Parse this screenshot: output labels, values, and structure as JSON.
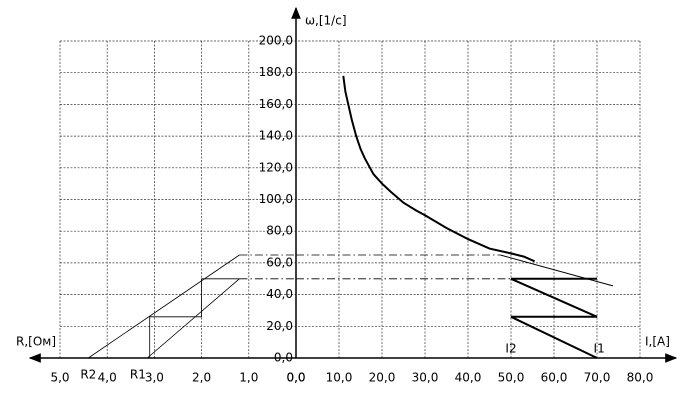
{
  "chart_data": {
    "type": "line",
    "ylabel": "ω,[1/с]",
    "xlabel": "I,[A]",
    "x2label": "R,[Ом]",
    "xlim": [
      0,
      80
    ],
    "xticks": [
      {
        "value": 0,
        "label": "0,0"
      },
      {
        "value": 10,
        "label": "10,0"
      },
      {
        "value": 20,
        "label": "20,0"
      },
      {
        "value": 30,
        "label": "30,0"
      },
      {
        "value": 40,
        "label": "40,0"
      },
      {
        "value": 50,
        "label": "50,0"
      },
      {
        "value": 60,
        "label": "60,0"
      },
      {
        "value": 70,
        "label": "70,0"
      },
      {
        "value": 80,
        "label": "80,0"
      }
    ],
    "x2lim": [
      5,
      0
    ],
    "x2ticks": [
      {
        "value": 5,
        "label": "5,0"
      },
      {
        "value": 4,
        "label": "4,0"
      },
      {
        "value": 3,
        "label": "3,0"
      },
      {
        "value": 2,
        "label": "2,0"
      },
      {
        "value": 1,
        "label": "1,0"
      },
      {
        "value": 0,
        "label": "0,0"
      }
    ],
    "ylim": [
      0,
      200
    ],
    "yticks": [
      {
        "value": 0,
        "label": "0,0"
      },
      {
        "value": 20,
        "label": "20,0"
      },
      {
        "value": 40,
        "label": "40,0"
      },
      {
        "value": 60,
        "label": "60,0"
      },
      {
        "value": 80,
        "label": "80,0"
      },
      {
        "value": 100,
        "label": "100,0"
      },
      {
        "value": 120,
        "label": "120,0"
      },
      {
        "value": 140,
        "label": "140,0"
      },
      {
        "value": 160,
        "label": "160,0"
      },
      {
        "value": 180,
        "label": "180,0"
      },
      {
        "value": 200,
        "label": "200,0"
      }
    ],
    "grid": true,
    "series": [
      {
        "color": "#000000",
        "width": 2,
        "x": [
          11,
          11.5,
          13,
          14,
          15,
          16,
          17,
          18,
          20,
          22,
          25,
          28,
          30,
          35,
          40,
          45,
          50,
          53,
          55.5
        ],
        "values": [
          178,
          168,
          150,
          140,
          132,
          126,
          121,
          116,
          110,
          105,
          98,
          93,
          90,
          82,
          75,
          69,
          66,
          64,
          61
        ]
      },
      {
        "color": "#000000",
        "width": 1,
        "x": [
          47.5,
          73.7
        ],
        "values": [
          65,
          45.5
        ]
      },
      {
        "color": "#000000",
        "width": 2,
        "x": [
          70,
          50,
          70,
          50,
          70
        ],
        "values": [
          0,
          26,
          26,
          50,
          50
        ]
      },
      {
        "color": "#000000",
        "width": 0.8,
        "style": "dashdot",
        "axis": "x2",
        "x": [
          1.2,
          0
        ],
        "values": [
          65,
          65
        ]
      },
      {
        "color": "#000000",
        "width": 0.8,
        "style": "dashdot",
        "x": [
          0,
          47.5
        ],
        "values": [
          65,
          65
        ]
      },
      {
        "color": "#000000",
        "width": 0.8,
        "style": "dashdot",
        "axis": "x2",
        "x": [
          1.2,
          0
        ],
        "values": [
          50,
          50
        ]
      },
      {
        "color": "#000000",
        "width": 0.8,
        "style": "dashdot",
        "x": [
          0,
          50
        ],
        "values": [
          50,
          50
        ]
      },
      {
        "color": "#000000",
        "width": 0.8,
        "axis": "x2",
        "x": [
          4.4,
          1.2
        ],
        "values": [
          0,
          65
        ]
      },
      {
        "color": "#000000",
        "width": 0.8,
        "axis": "x2",
        "x": [
          3.15,
          1.2
        ],
        "values": [
          0,
          50
        ]
      },
      {
        "color": "#000000",
        "width": 0.8,
        "axis": "x2",
        "x": [
          3.1,
          3.1,
          2.0,
          2.0,
          1.2
        ],
        "values": [
          0,
          26,
          26,
          50,
          50
        ]
      }
    ],
    "annotations": [
      {
        "text": "R2",
        "axis": "x2",
        "x": 4.4
      },
      {
        "text": "R1",
        "axis": "x2",
        "x": 3.35
      },
      {
        "text": "I2",
        "x": 50
      },
      {
        "text": "I1",
        "x": 70.5
      }
    ]
  }
}
